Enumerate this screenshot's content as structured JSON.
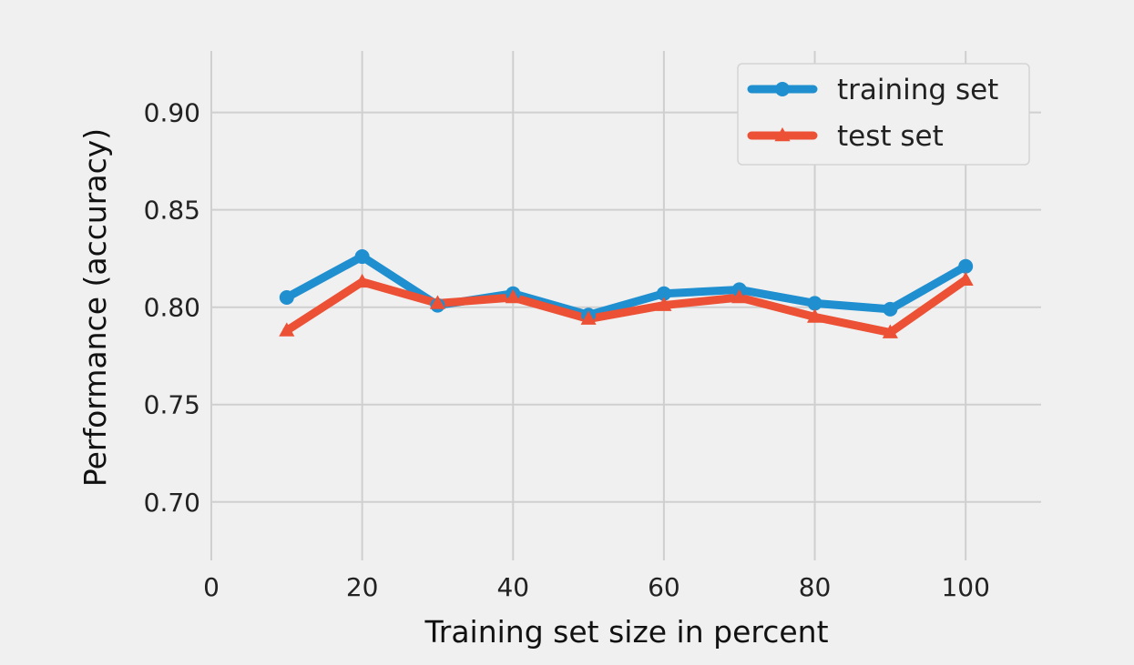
{
  "chart_data": {
    "type": "line",
    "title": "",
    "xlabel": "Training set size in percent",
    "ylabel": "Performance (accuracy)",
    "xlim": [
      0,
      110
    ],
    "ylim": [
      0.67,
      0.94
    ],
    "xticks": [
      0,
      20,
      40,
      60,
      80,
      100
    ],
    "xtick_labels": [
      "0",
      "20",
      "40",
      "60",
      "80",
      "100"
    ],
    "yticks": [
      0.7,
      0.75,
      0.8,
      0.85,
      0.9
    ],
    "ytick_labels": [
      "0.70",
      "0.75",
      "0.80",
      "0.85",
      "0.90"
    ],
    "grid": true,
    "legend_position": "top-right",
    "x": [
      10,
      20,
      30,
      40,
      50,
      60,
      70,
      80,
      90,
      100
    ],
    "series": [
      {
        "name": "training set",
        "color": "#1f8fd0",
        "marker": "circle",
        "values": [
          0.805,
          0.826,
          0.801,
          0.807,
          0.796,
          0.807,
          0.809,
          0.802,
          0.799,
          0.821
        ]
      },
      {
        "name": "test set",
        "color": "#ec5035",
        "marker": "triangle",
        "values": [
          0.788,
          0.813,
          0.802,
          0.805,
          0.794,
          0.801,
          0.805,
          0.795,
          0.787,
          0.814
        ]
      }
    ]
  }
}
